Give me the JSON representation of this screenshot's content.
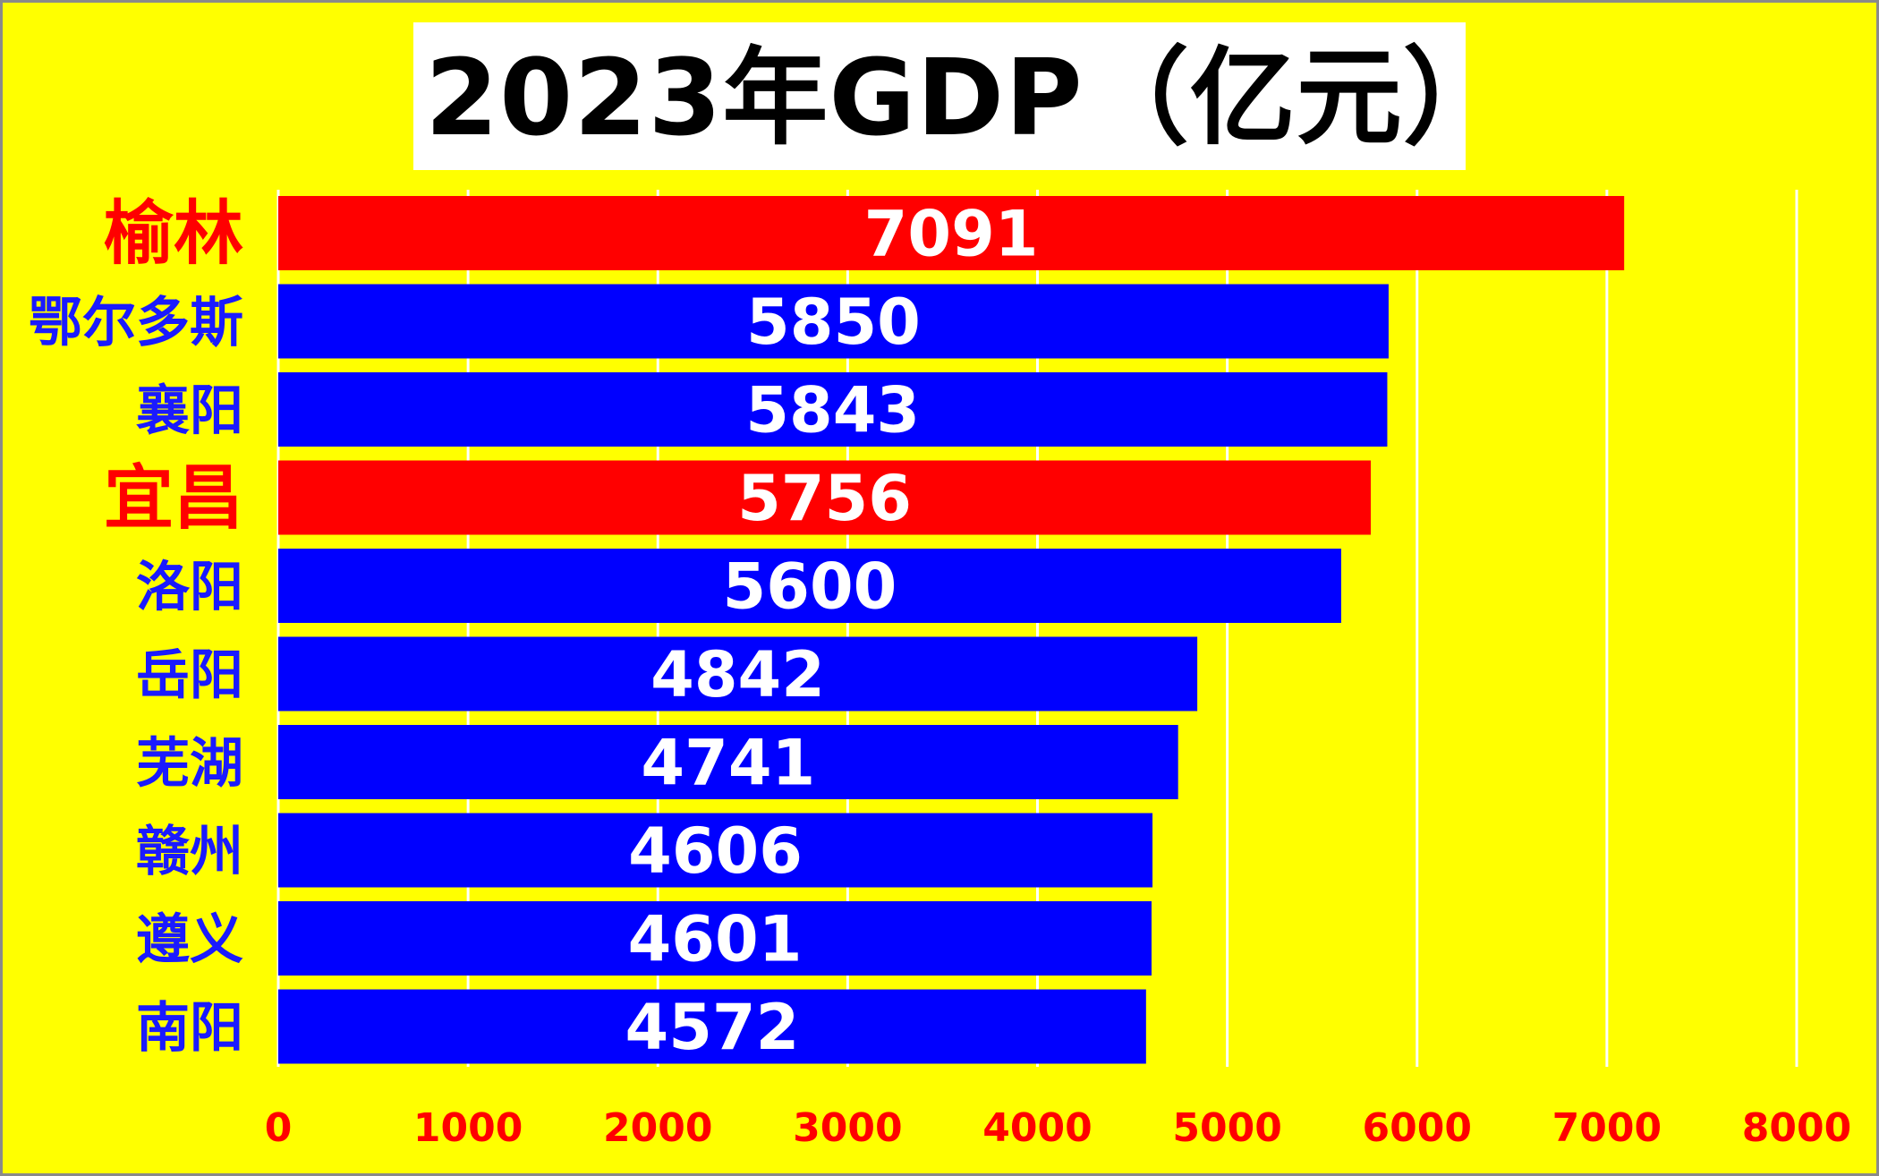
{
  "chart_data": {
    "type": "bar",
    "orientation": "horizontal",
    "title": "2023年GDP（亿元）",
    "categories": [
      "榆林",
      "鄂尔多斯",
      "襄阳",
      "宜昌",
      "洛阳",
      "岳阳",
      "芜湖",
      "赣州",
      "遵义",
      "南阳"
    ],
    "values": [
      7091,
      5850,
      5843,
      5756,
      5600,
      4842,
      4741,
      4606,
      4601,
      4572
    ],
    "highlighted": [
      true,
      false,
      false,
      true,
      false,
      false,
      false,
      false,
      false,
      false
    ],
    "xlim": [
      0,
      8000
    ],
    "xticks": [
      0,
      1000,
      2000,
      3000,
      4000,
      5000,
      6000,
      7000,
      8000
    ],
    "grid": "vertical",
    "legend": "none",
    "data_labels": "inside"
  },
  "colors": {
    "background": "#ffff00",
    "bar_default": "#0000ff",
    "bar_highlight": "#ff0000",
    "label_default": "#1a1aff",
    "label_highlight": "#ff0000",
    "tick_label": "#ff0000",
    "value_label": "#ffffff",
    "grid": "#ffffff",
    "title": "#000000",
    "title_box": "#ffffff"
  }
}
